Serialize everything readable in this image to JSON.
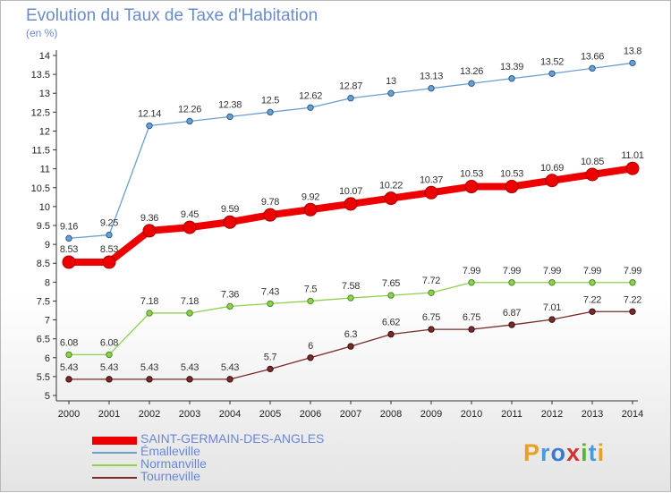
{
  "title": "Evolution du Taux de Taxe d'Habitation",
  "subtitle": "(en %)",
  "logo": {
    "text": "Proxiti",
    "letters": [
      "P",
      "r",
      "o",
      "x",
      "i",
      "t",
      "i"
    ],
    "colors": [
      "#e8a020",
      "#4a9ad8",
      "#3a7ad0",
      "#d83030",
      "#60b030",
      "#4a9ad8",
      "#e8a020"
    ]
  },
  "chart_data": {
    "type": "line",
    "title": "Evolution du Taux de Taxe d'Habitation",
    "ylabel": "(en %)",
    "xlabel": "",
    "x": [
      "2000",
      "2001",
      "2002",
      "2003",
      "2004",
      "2005",
      "2006",
      "2007",
      "2008",
      "2009",
      "2010",
      "2011",
      "2012",
      "2013",
      "2014"
    ],
    "ylim": [
      5,
      14
    ],
    "yticks": [
      "5",
      "5.5",
      "6",
      "6.5",
      "7",
      "7.5",
      "8",
      "8.5",
      "9",
      "9.5",
      "10",
      "10.5",
      "11",
      "11.5",
      "12",
      "12.5",
      "13",
      "13.5",
      "14"
    ],
    "grid": false,
    "legend_position": "bottom-left",
    "series": [
      {
        "name": "SAINT-GERMAIN-DES-ANGLES",
        "color": "#ee0000",
        "values": [
          8.53,
          8.53,
          9.36,
          9.45,
          9.59,
          9.78,
          9.92,
          10.07,
          10.22,
          10.37,
          10.53,
          10.53,
          10.69,
          10.85,
          11.01
        ],
        "labels": [
          "8.53",
          "8.53",
          "9.36",
          "9.45",
          "9.59",
          "9.78",
          "9.92",
          "10.07",
          "10.22",
          "10.37",
          "10.53",
          "10.53",
          "10.69",
          "10.85",
          "11.01"
        ]
      },
      {
        "name": "Émalleville",
        "color": "#6a9fd0",
        "values": [
          9.16,
          9.25,
          12.14,
          12.26,
          12.38,
          12.5,
          12.62,
          12.87,
          13,
          13.13,
          13.26,
          13.39,
          13.52,
          13.66,
          13.8
        ],
        "labels": [
          "9.16",
          "9.25",
          "12.14",
          "12.26",
          "12.38",
          "12.5",
          "12.62",
          "12.87",
          "13",
          "13.13",
          "13.26",
          "13.39",
          "13.52",
          "13.66",
          "13.8"
        ]
      },
      {
        "name": "Normanville",
        "color": "#90d050",
        "values": [
          6.08,
          6.08,
          7.18,
          7.18,
          7.36,
          7.43,
          7.5,
          7.58,
          7.65,
          7.72,
          7.99,
          7.99,
          7.99,
          7.99,
          7.99
        ],
        "labels": [
          "6.08",
          "6.08",
          "7.18",
          "7.18",
          "7.36",
          "7.43",
          "7.5",
          "7.58",
          "7.65",
          "7.72",
          "7.99",
          "7.99",
          "7.99",
          "7.99",
          "7.99"
        ]
      },
      {
        "name": "Tourneville",
        "color": "#7a2a2a",
        "values": [
          5.43,
          5.43,
          5.43,
          5.43,
          5.43,
          5.7,
          6,
          6.3,
          6.62,
          6.75,
          6.75,
          6.87,
          7.01,
          7.22,
          7.22
        ],
        "labels": [
          "5.43",
          "5.43",
          "5.43",
          "5.43",
          "5.43",
          "5.7",
          "6",
          "6.3",
          "6.62",
          "6.75",
          "6.75",
          "6.87",
          "7.01",
          "7.22",
          "7.22"
        ]
      }
    ]
  },
  "legend": {
    "items": [
      {
        "label": "SAINT-GERMAIN-DES-ANGLES",
        "color": "#ee0000",
        "thick": true
      },
      {
        "label": "Émalleville",
        "color": "#6a9fd0",
        "thick": false
      },
      {
        "label": "Normanville",
        "color": "#90d050",
        "thick": false
      },
      {
        "label": "Tourneville",
        "color": "#7a2a2a",
        "thick": false
      }
    ]
  }
}
